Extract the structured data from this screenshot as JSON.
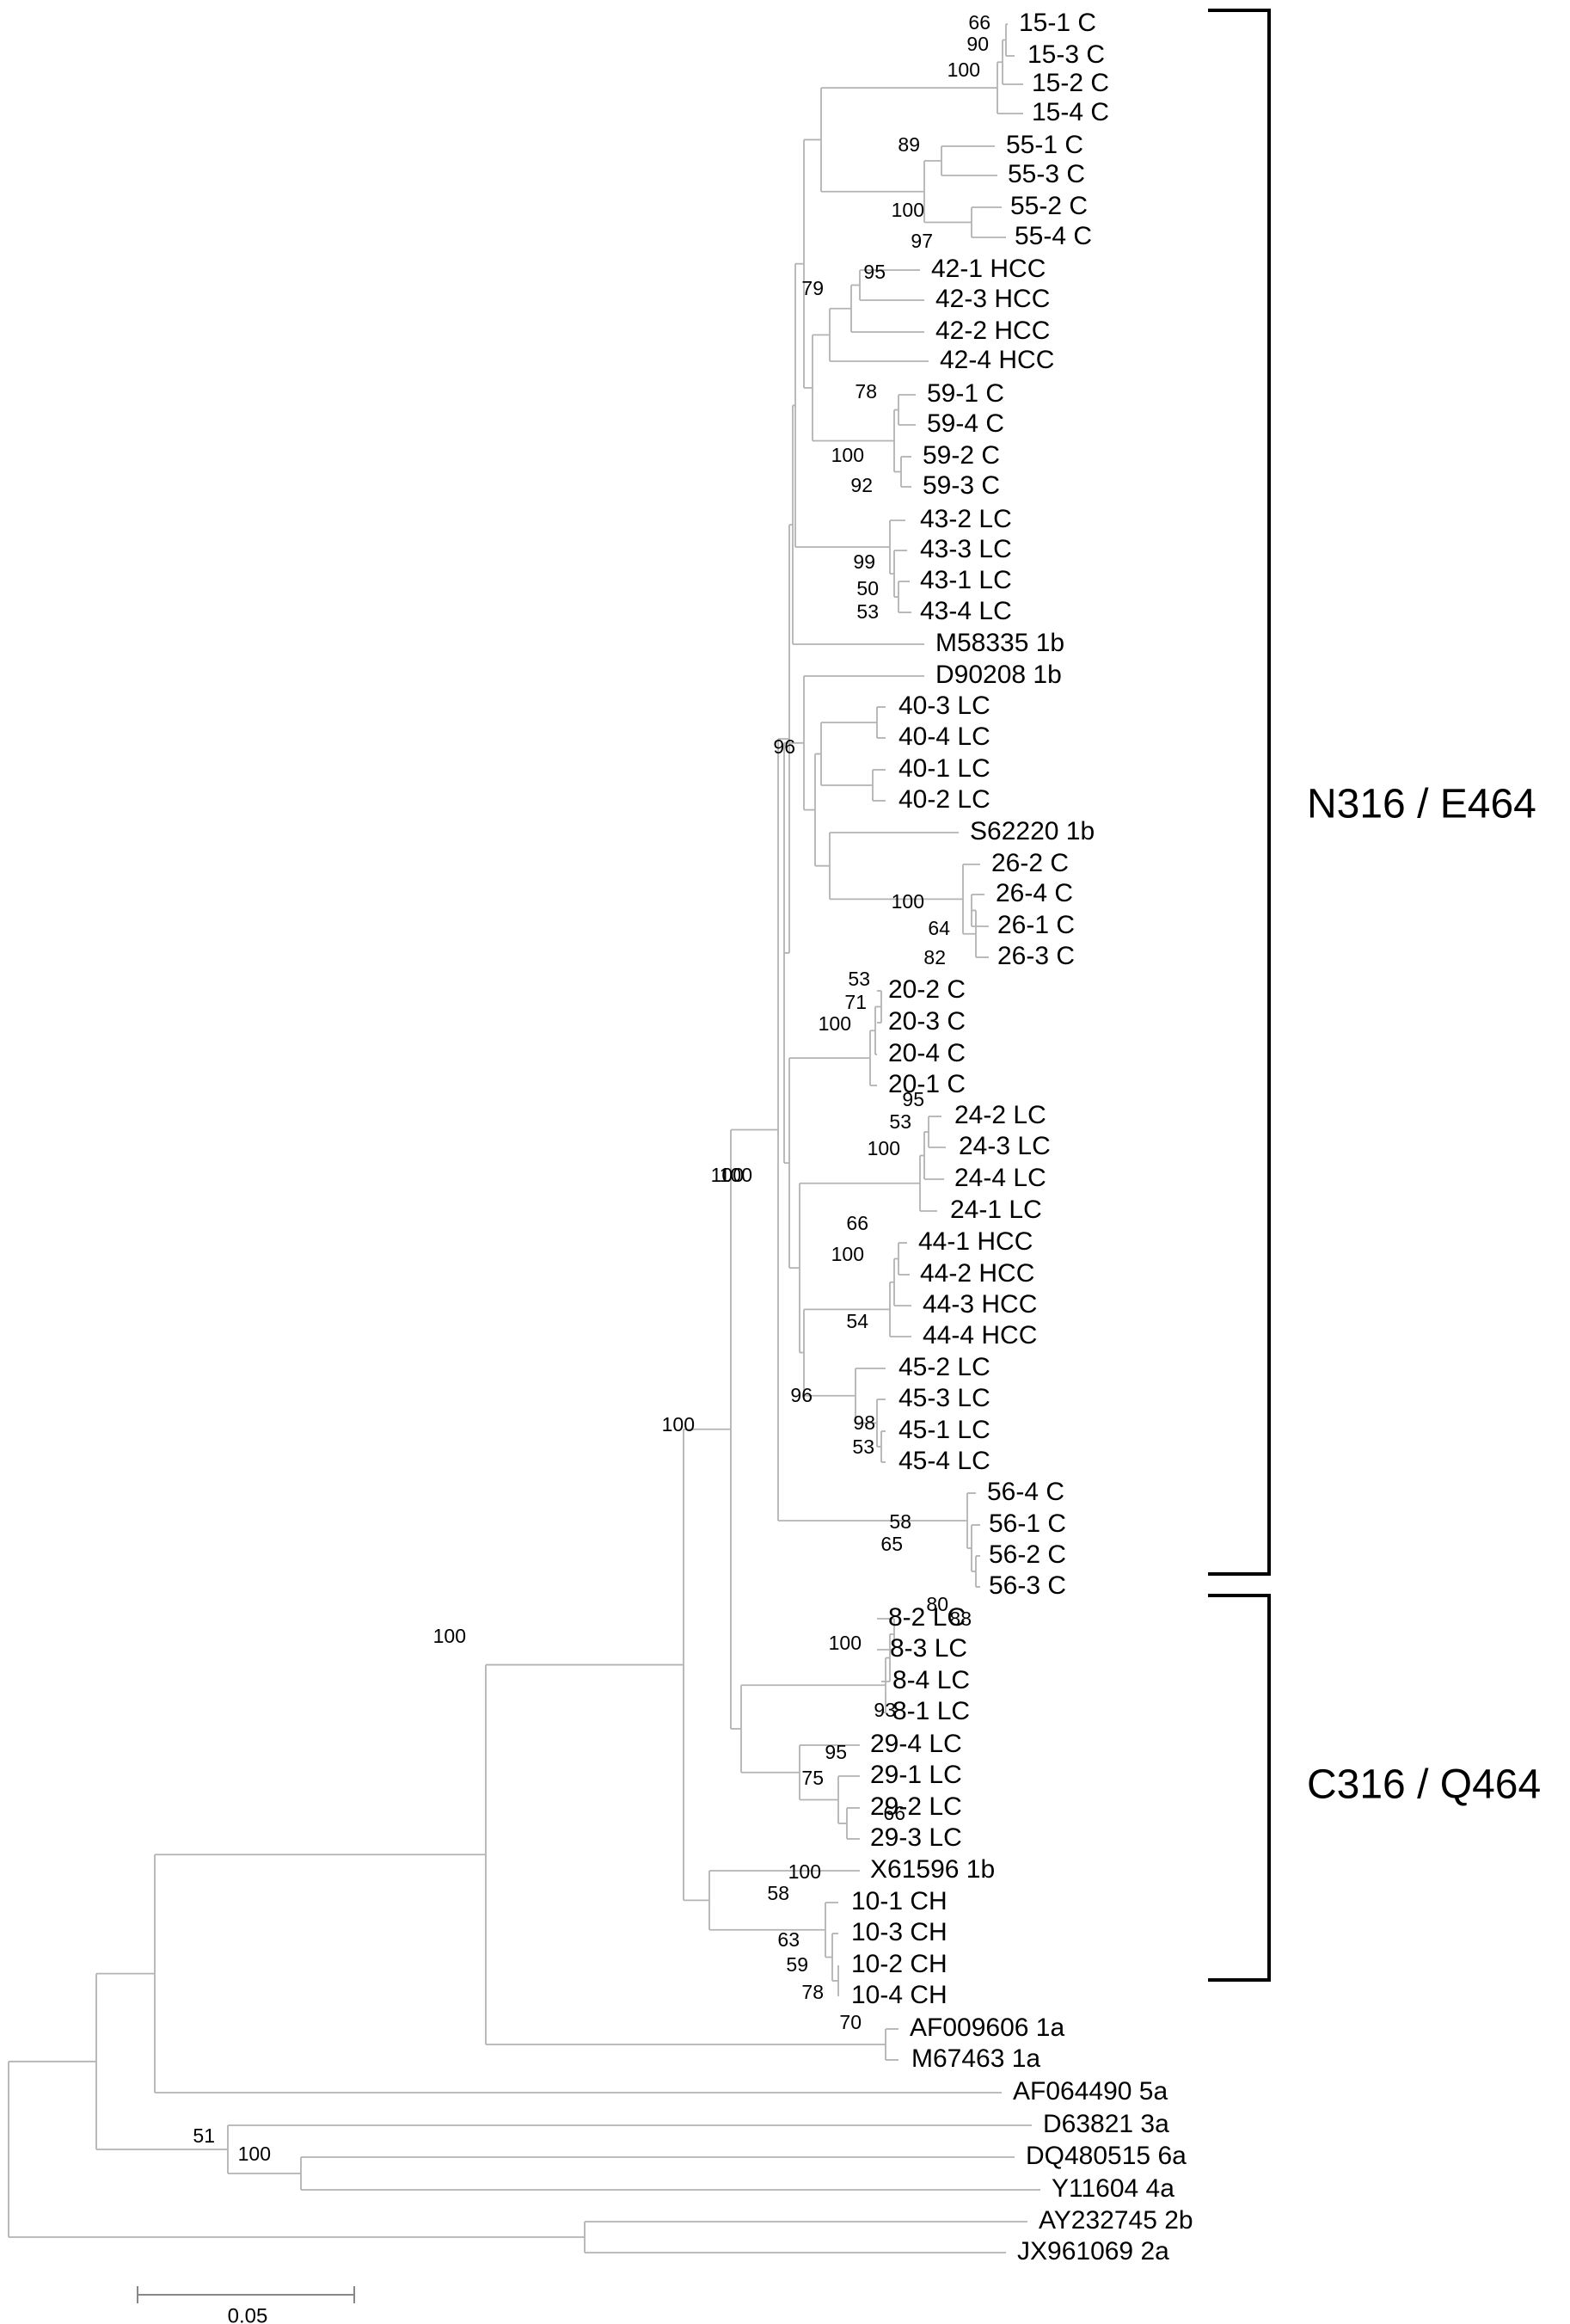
{
  "tree": {
    "taxa": [
      "15-1 C",
      "15-3 C",
      "15-2 C",
      "15-4 C",
      "55-1 C",
      "55-3 C",
      "55-2 C",
      "55-4 C",
      "42-1 HCC",
      "42-3 HCC",
      "42-2 HCC",
      "42-4 HCC",
      "59-1 C",
      "59-4 C",
      "59-2 C",
      "59-3 C",
      "43-2 LC",
      "43-3 LC",
      "43-1 LC",
      "43-4 LC",
      "M58335 1b",
      "D90208 1b",
      "40-3 LC",
      "40-4 LC",
      "40-1 LC",
      "40-2 LC",
      "S62220 1b",
      "26-2 C",
      "26-4 C",
      "26-1 C",
      "26-3 C",
      "20-2 C",
      "20-3 C",
      "20-4 C",
      "20-1 C",
      "24-2 LC",
      "24-3 LC",
      "24-4 LC",
      "24-1 LC",
      "44-1 HCC",
      "44-2 HCC",
      "44-3 HCC",
      "44-4 HCC",
      "45-2 LC",
      "45-3 LC",
      "45-1 LC",
      "45-4 LC",
      "56-4 C",
      "56-1 C",
      "56-2 C",
      "56-3 C",
      "8-2 LC",
      "8-3 LC",
      "8-4 LC",
      "8-1 LC",
      "29-4 LC",
      "29-1 LC",
      "29-2 LC",
      "29-3 LC",
      "X61596 1b",
      "10-1 CH",
      "10-3 CH",
      "10-2 CH",
      "10-4 CH",
      "AF009606 1a",
      "M67463 1a",
      "AF064490 5a",
      "D63821 3a",
      "DQ480515 6a",
      "Y11604 4a",
      "AY232745 2b",
      "JX961069 2a"
    ],
    "bootstrap": [
      "66",
      "90",
      "100",
      "89",
      "100",
      "97",
      "95",
      "79",
      "78",
      "100",
      "92",
      "99",
      "50",
      "53",
      "96",
      "100",
      "64",
      "82",
      "53",
      "71",
      "100",
      "95",
      "53",
      "100",
      "66",
      "100",
      "54",
      "96",
      "98",
      "53",
      "100",
      "58",
      "65",
      "88",
      "80",
      "100",
      "93",
      "95",
      "75",
      "66",
      "100",
      "63",
      "59",
      "78",
      "58",
      "100",
      "100",
      "100",
      "70",
      "51",
      "100"
    ],
    "clades": [
      "N316 / E464",
      "C316 / Q464"
    ],
    "scale_bar": "0.05"
  }
}
